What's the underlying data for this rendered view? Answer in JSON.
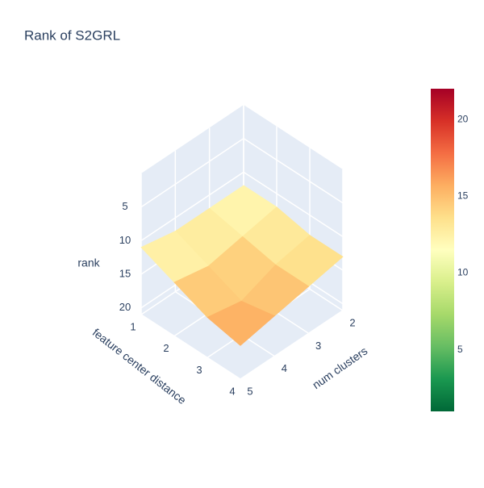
{
  "chart_data": {
    "type": "surface",
    "title": "Rank of S2GRL",
    "x_label": "feature center distance",
    "y_label": "num clusters",
    "z_label": "rank",
    "x": [
      1,
      2,
      3,
      4
    ],
    "y": [
      2,
      3,
      4,
      5
    ],
    "z": [
      [
        12,
        12,
        13,
        13
      ],
      [
        12,
        13,
        14,
        14
      ],
      [
        12,
        14,
        16,
        15
      ],
      [
        11,
        13,
        15,
        16
      ]
    ],
    "xlim": [
      1,
      4
    ],
    "ylim": [
      2,
      5
    ],
    "zlim": [
      0,
      21
    ],
    "z_reversed": true,
    "xticks": [
      1,
      2,
      3,
      4
    ],
    "yticks": [
      2,
      3,
      4,
      5
    ],
    "zticks": [
      5,
      10,
      15,
      20
    ],
    "colorbar": {
      "cmin": 1,
      "cmax": 22,
      "ticks": [
        5,
        10,
        15,
        20
      ]
    },
    "colorscale": [
      "#006837",
      "#1a9850",
      "#66bd63",
      "#a6d96a",
      "#d9ef8b",
      "#ffffbf",
      "#fee08b",
      "#fdae61",
      "#f46d43",
      "#d73027",
      "#a50026"
    ]
  }
}
